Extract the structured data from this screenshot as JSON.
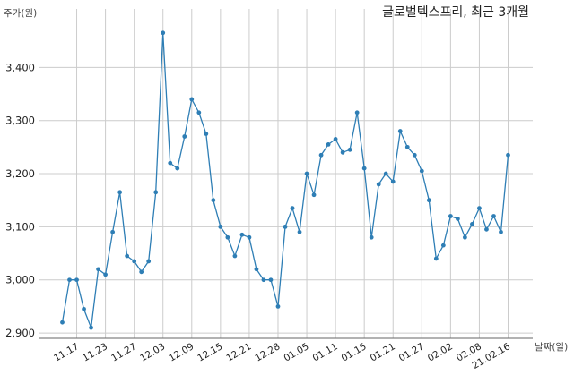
{
  "chart_data": {
    "type": "line",
    "title": "글로벌텍스프리, 최근 3개월",
    "ylabel": "주가(원)",
    "xlabel": "날짜(일)",
    "ylim": [
      2890,
      3500
    ],
    "yticks": [
      2900,
      3000,
      3100,
      3200,
      3300,
      3400
    ],
    "ytick_labels": [
      "2,900",
      "3,000",
      "3,100",
      "3,200",
      "3,300",
      "3,400"
    ],
    "grid": true,
    "line_color": "#2e7eb5",
    "x_tick_labels": [
      "11.17",
      "11.23",
      "11.27",
      "12.03",
      "12.09",
      "12.15",
      "12.21",
      "12.28",
      "01.05",
      "01.11",
      "01.15",
      "01.21",
      "01.27",
      "02.02",
      "02.08",
      "21.02.16"
    ],
    "x_tick_index": [
      2,
      6,
      10,
      14,
      18,
      22,
      26,
      30,
      34,
      38,
      42,
      46,
      50,
      54,
      58,
      62
    ],
    "values": [
      2920,
      3000,
      3000,
      2945,
      2910,
      3020,
      3010,
      3090,
      3165,
      3045,
      3035,
      3015,
      3035,
      3165,
      3465,
      3220,
      3210,
      3270,
      3340,
      3315,
      3275,
      3150,
      3100,
      3080,
      3045,
      3085,
      3080,
      3020,
      3000,
      3000,
      2950,
      3100,
      3135,
      3090,
      3200,
      3160,
      3235,
      3255,
      3265,
      3240,
      3245,
      3315,
      3210,
      3080,
      3180,
      3200,
      3185,
      3280,
      3250,
      3235,
      3205,
      3150,
      3040,
      3065,
      3120,
      3115,
      3080,
      3105,
      3135,
      3095,
      3120,
      3090,
      3235
    ]
  }
}
